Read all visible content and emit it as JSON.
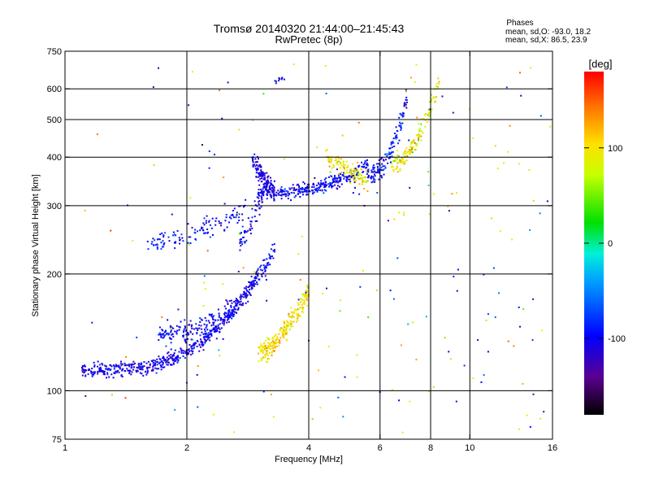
{
  "header": {
    "title": "Tromsø 20140320 21:44:00–21:45:43",
    "subtitle": "RwPretec (8p)"
  },
  "phase_stats": {
    "heading": "Phases",
    "line_o": "mean, sd,O: -93.0, 18.2",
    "line_x": "mean, sd,X:  86.5, 23.9"
  },
  "colorbar": {
    "unit_label": "[deg]",
    "ticks": [
      {
        "value": 100,
        "label": "100"
      },
      {
        "value": 0,
        "label": "0"
      },
      {
        "value": -100,
        "label": "-100"
      }
    ],
    "range": [
      -180,
      180
    ]
  },
  "chart_data": {
    "type": "scatter",
    "xlabel": "Frequency [MHz]",
    "ylabel": "Stationary phase Virtual Height [km]",
    "x_scale": "log",
    "y_scale": "log",
    "xlim": [
      1,
      16
    ],
    "ylim": [
      75,
      750
    ],
    "x_ticks": [
      {
        "value": 1,
        "label": "1"
      },
      {
        "value": 2,
        "label": "2"
      },
      {
        "value": 4,
        "label": "4"
      },
      {
        "value": 6,
        "label": "6"
      },
      {
        "value": 8,
        "label": "8"
      },
      {
        "value": 10,
        "label": "10"
      },
      {
        "value": 16,
        "label": "16"
      }
    ],
    "y_ticks": [
      {
        "value": 75,
        "label": "75"
      },
      {
        "value": 100,
        "label": "100"
      },
      {
        "value": 200,
        "label": "200"
      },
      {
        "value": 300,
        "label": "300"
      },
      {
        "value": 400,
        "label": "400"
      },
      {
        "value": 500,
        "label": "500"
      },
      {
        "value": 600,
        "label": "600"
      },
      {
        "value": 750,
        "label": "750"
      }
    ],
    "x_gridlines": [
      2,
      4,
      6,
      8,
      10
    ],
    "y_gridlines": [
      100,
      200,
      300,
      400,
      500,
      600
    ],
    "grid": true,
    "color_by": "phase [deg]",
    "traces": [
      {
        "f_start": 1.1,
        "f_end": 3.0,
        "h_start": 113,
        "h_end": 200,
        "curve": 3.2,
        "count": 520,
        "spread": 0.022,
        "phase": -105,
        "phase_sd": 15
      },
      {
        "f_start": 1.7,
        "f_end": 3.3,
        "h_start": 140,
        "h_end": 230,
        "curve": 2.6,
        "count": 260,
        "spread": 0.03,
        "phase": -100,
        "phase_sd": 15
      },
      {
        "f_start": 3.0,
        "f_end": 4.0,
        "h_start": 125,
        "h_end": 180,
        "curve": 1.6,
        "count": 240,
        "spread": 0.03,
        "phase": 100,
        "phase_sd": 18
      },
      {
        "f_start": 1.6,
        "f_end": 2.8,
        "h_start": 235,
        "h_end": 290,
        "curve": 1.2,
        "count": 120,
        "spread": 0.03,
        "phase": -95,
        "phase_sd": 15
      },
      {
        "f_start": 2.9,
        "f_end": 3.3,
        "h_start": 395,
        "h_end": 320,
        "curve": 1.0,
        "count": 130,
        "spread": 0.03,
        "phase": -110,
        "phase_sd": 12
      },
      {
        "f_start": 3.0,
        "f_end": 5.6,
        "h_start": 325,
        "h_end": 380,
        "curve": 2.6,
        "count": 330,
        "spread": 0.02,
        "phase": -100,
        "phase_sd": 15
      },
      {
        "f_start": 4.4,
        "f_end": 5.6,
        "h_start": 400,
        "h_end": 345,
        "curve": 1.0,
        "count": 110,
        "spread": 0.025,
        "phase": 95,
        "phase_sd": 22
      },
      {
        "f_start": 5.6,
        "f_end": 7.0,
        "h_start": 360,
        "h_end": 570,
        "curve": 2.2,
        "count": 140,
        "spread": 0.03,
        "phase": -95,
        "phase_sd": 18
      },
      {
        "f_start": 6.4,
        "f_end": 8.4,
        "h_start": 380,
        "h_end": 620,
        "curve": 1.8,
        "count": 140,
        "spread": 0.03,
        "phase": 90,
        "phase_sd": 25
      },
      {
        "f_start": 3.2,
        "f_end": 3.5,
        "h_start": 620,
        "h_end": 640,
        "curve": 1.0,
        "count": 10,
        "spread": 0.01,
        "phase": -100,
        "phase_sd": 10
      },
      {
        "f_start": 2.7,
        "f_end": 3.1,
        "h_start": 235,
        "h_end": 320,
        "curve": 1.0,
        "count": 60,
        "spread": 0.04,
        "phase": -105,
        "phase_sd": 15
      }
    ],
    "noise_count": 200,
    "noise_xlim": [
      1.1,
      15.8
    ],
    "noise_ylim": [
      78,
      700
    ]
  }
}
